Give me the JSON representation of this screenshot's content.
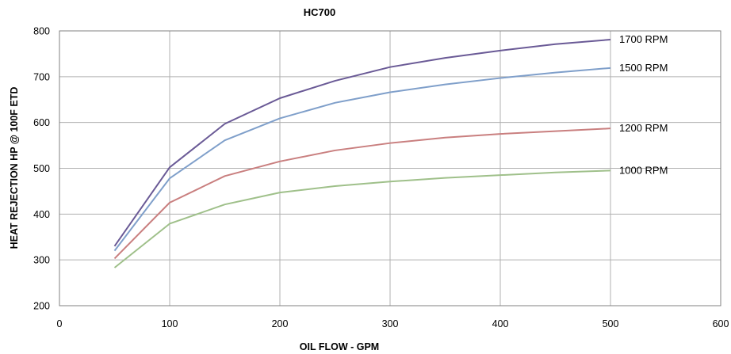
{
  "chart_data": {
    "type": "line",
    "title": "HC700",
    "xlabel": "OIL FLOW - GPM",
    "ylabel": "HEAT REJECTION HP @ 100F ETD",
    "xlim": [
      0,
      600
    ],
    "ylim": [
      200,
      800
    ],
    "xticks": [
      "0",
      "100",
      "200",
      "300",
      "400",
      "500",
      "600"
    ],
    "yticks": [
      "200",
      "300",
      "400",
      "500",
      "600",
      "700",
      "800"
    ],
    "grid": true,
    "legend": "none",
    "x": [
      50,
      100,
      150,
      200,
      250,
      300,
      350,
      400,
      450,
      500
    ],
    "series": [
      {
        "name": "1700 RPM",
        "color": "#6a5a96",
        "values": [
          330,
          502,
          597,
          653,
          691,
          721,
          741,
          757,
          771,
          781
        ]
      },
      {
        "name": "1500 RPM",
        "color": "#7f9fca",
        "values": [
          320,
          478,
          561,
          609,
          643,
          666,
          683,
          697,
          709,
          719
        ]
      },
      {
        "name": "1200 RPM",
        "color": "#c97f7f",
        "values": [
          303,
          425,
          483,
          515,
          539,
          555,
          567,
          575,
          581,
          587
        ]
      },
      {
        "name": "1000 RPM",
        "color": "#9fc08a",
        "values": [
          283,
          379,
          421,
          447,
          461,
          471,
          479,
          485,
          491,
          495
        ]
      }
    ]
  }
}
